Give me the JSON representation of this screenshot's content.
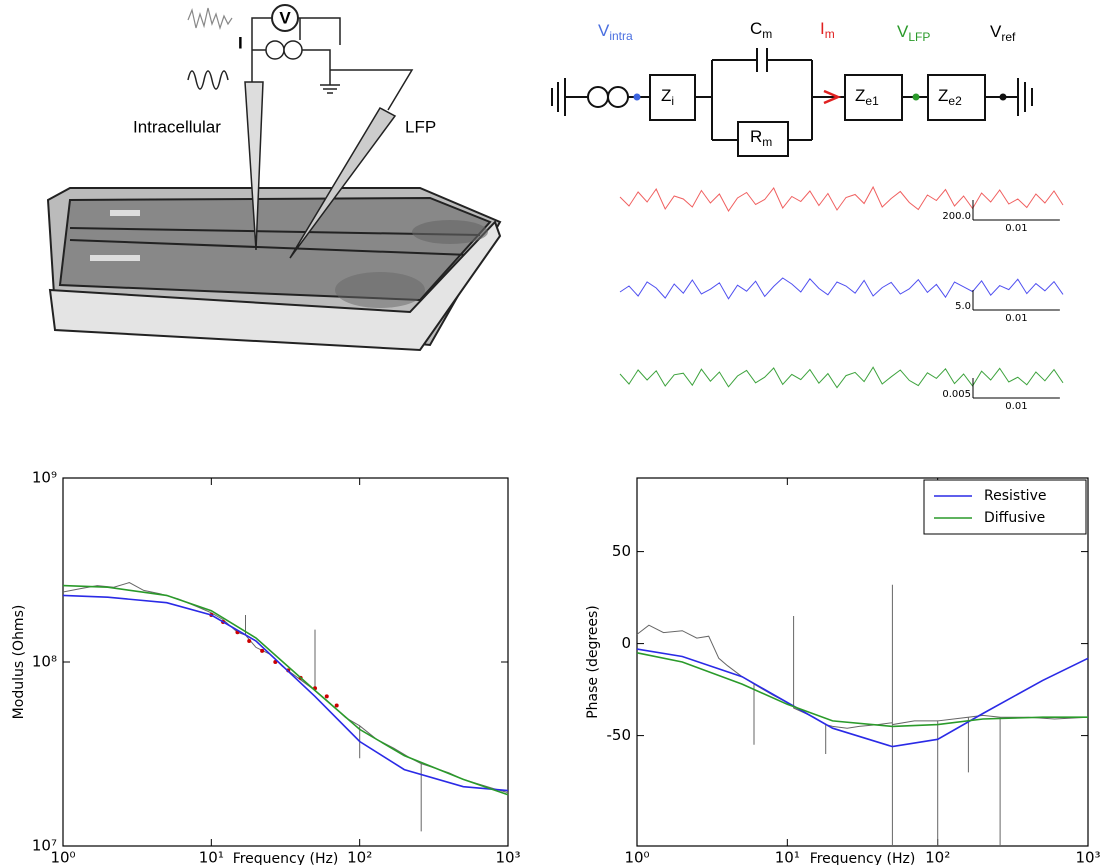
{
  "illustration": {
    "labels": [
      "Intracellular",
      "LFP"
    ],
    "meter": "V",
    "source": "I"
  },
  "circuit": {
    "labels": [
      {
        "text": "V",
        "sub": "intra"
      },
      {
        "text": "C",
        "sub": "m"
      },
      {
        "text": "I",
        "sub": "m"
      },
      {
        "text": "V",
        "sub": "LFP"
      },
      {
        "text": "V",
        "sub": "ref"
      }
    ],
    "boxes": [
      {
        "text": "Z",
        "sub": "i"
      },
      {
        "text": "R",
        "sub": "m"
      },
      {
        "text": "Z",
        "sub": "e1"
      },
      {
        "text": "Z",
        "sub": "e2"
      }
    ]
  },
  "chart_data": [
    {
      "type": "line",
      "xlim": [
        0,
        0.051
      ],
      "ylim": [
        -200,
        200
      ],
      "scale_bar": {
        "y": {
          "value": 200,
          "label": "200.0"
        },
        "x": 0.01
      },
      "series": [
        {
          "color": "#f06060",
          "values": [
            30,
            -60,
            80,
            -20,
            110,
            -90,
            40,
            10,
            -70,
            95,
            -30,
            60,
            -110,
            20,
            75,
            -45,
            5,
            120,
            -80,
            35,
            -15,
            90,
            -55,
            65,
            -100,
            25,
            55,
            -35,
            130,
            -70,
            15,
            85,
            -25,
            -95,
            50,
            -5,
            105,
            -60,
            40,
            -85,
            70,
            -20,
            100,
            -40,
            10,
            -75,
            60,
            -30,
            90,
            -50
          ]
        }
      ]
    },
    {
      "type": "line",
      "xlim": [
        0,
        0.051
      ],
      "ylim": [
        -5,
        5
      ],
      "scale_bar": {
        "y": {
          "value": 5,
          "label": "5.0"
        },
        "x": 0.01
      },
      "series": [
        {
          "color": "#5050f0",
          "values": [
            -0.5,
            1,
            -1.5,
            2,
            0.5,
            -2,
            1.5,
            -0.8,
            2.5,
            -1,
            0.2,
            1.8,
            -2.2,
            1.2,
            -0.3,
            2.2,
            -1.6,
            0.9,
            3,
            1.5,
            -0.5,
            2.8,
            0.4,
            -1.2,
            2,
            1,
            -0.8,
            2.4,
            -1.5,
            0.6,
            1.9,
            -1,
            0.3,
            2.6,
            -0.6,
            1.4,
            -1.8,
            2,
            0.8,
            -0.4,
            2.3,
            -1.3,
            1.1,
            0.1,
            2.7,
            -0.9,
            1.6,
            -0.2,
            2.1,
            -1.1
          ]
        }
      ]
    },
    {
      "type": "line",
      "xlim": [
        0,
        0.051
      ],
      "ylim": [
        -0.005,
        0.005
      ],
      "scale_bar": {
        "y": 0.005,
        "x": 0.01
      },
      "series": [
        {
          "color": "#3ea33e",
          "values": [
            0.001,
            -0.0015,
            0.002,
            -0.0005,
            0.0018,
            -0.002,
            0.0008,
            0.0012,
            -0.0018,
            0.0022,
            -0.0008,
            0.0015,
            -0.0022,
            0.0005,
            0.0019,
            -0.0012,
            0.0002,
            0.0025,
            -0.0016,
            0.0009,
            -0.0004,
            0.0021,
            -0.0013,
            0.0011,
            -0.0024,
            0.0006,
            0.0014,
            -0.0009,
            0.0027,
            -0.0015,
            0.0003,
            0.002,
            -0.0006,
            -0.0019,
            0.0013,
            -0.0001,
            0.0023,
            -0.0014,
            0.001,
            -0.002,
            0.0017,
            -0.0005,
            0.0024,
            -0.001,
            0.0002,
            -0.0017,
            0.0015,
            -0.0007,
            0.0021,
            -0.0012
          ]
        }
      ]
    },
    {
      "type": "line",
      "xscale": "log",
      "yscale": "log",
      "xlabel": "Frequency (Hz)",
      "ylabel": "Modulus (Ohms)",
      "xlim": [
        1,
        1000
      ],
      "ylim": [
        10000000,
        1000000000
      ],
      "xticks": [
        {
          "value": 1,
          "label": "10⁰"
        },
        {
          "value": 10,
          "label": "10¹"
        },
        {
          "value": 100,
          "label": "10²"
        },
        {
          "value": 1000,
          "label": "10³"
        }
      ],
      "yticks": [
        {
          "value": 10000000,
          "label": "10⁷"
        },
        {
          "value": 100000000,
          "label": "10⁸"
        },
        {
          "value": 1000000000,
          "label": "10⁹"
        }
      ],
      "series": [
        {
          "color": "#666666",
          "x": [
            1,
            1.3,
            1.7,
            2.2,
            2.8,
            3.5,
            4.5,
            6,
            8,
            10,
            12,
            15,
            17,
            17,
            17,
            20,
            25,
            30,
            40,
            50,
            50,
            50,
            60,
            80,
            100,
            100,
            100,
            130,
            170,
            220,
            260,
            260,
            260,
            300,
            400,
            500,
            600,
            800,
            1000
          ],
          "values": [
            240000000,
            250000000,
            260000000,
            255000000,
            270000000,
            245000000,
            235000000,
            220000000,
            200000000,
            185000000,
            170000000,
            145000000,
            140000000,
            180000000,
            140000000,
            120000000,
            110000000,
            95000000,
            80000000,
            70000000,
            150000000,
            70000000,
            62000000,
            50000000,
            45000000,
            30000000,
            45000000,
            38000000,
            34000000,
            30000000,
            28000000,
            12000000,
            28000000,
            27000000,
            25000000,
            23000000,
            22000000,
            20500000,
            19500000
          ]
        },
        {
          "color": "#cc0000",
          "style": "points",
          "x": [
            10,
            12,
            15,
            18,
            22,
            27,
            33,
            40,
            50,
            60,
            70
          ],
          "values": [
            180000000,
            165000000,
            145000000,
            130000000,
            115000000,
            100000000,
            90000000,
            82000000,
            72000000,
            65000000,
            58000000
          ]
        },
        {
          "name": "Resistive",
          "color": "#2a2ae6",
          "x": [
            1,
            2,
            5,
            10,
            20,
            50,
            100,
            200,
            500,
            1000
          ],
          "values": [
            230000000,
            225000000,
            210000000,
            180000000,
            130000000,
            65000000,
            37000000,
            26000000,
            21000000,
            20000000
          ]
        },
        {
          "name": "Diffusive",
          "color": "#2a9a2a",
          "x": [
            1,
            2,
            5,
            10,
            20,
            50,
            100,
            200,
            500,
            1000
          ],
          "values": [
            260000000,
            255000000,
            230000000,
            190000000,
            135000000,
            70000000,
            43000000,
            31000000,
            23000000,
            19000000
          ]
        }
      ]
    },
    {
      "type": "line",
      "xscale": "log",
      "xlabel": "Frequency (Hz)",
      "ylabel": "Phase (degrees)",
      "legend": "upper right",
      "xlim": [
        1,
        1000
      ],
      "ylim": [
        -110,
        90
      ],
      "xticks": [
        {
          "value": 1,
          "label": "10⁰"
        },
        {
          "value": 10,
          "label": "10¹"
        },
        {
          "value": 100,
          "label": "10²"
        },
        {
          "value": 1000,
          "label": "10³"
        }
      ],
      "yticks": [
        -50,
        0,
        50
      ],
      "series": [
        {
          "color": "#666666",
          "x": [
            1,
            1.2,
            1.5,
            2,
            2.5,
            3,
            3.5,
            4,
            5,
            6,
            6,
            6,
            8,
            10,
            11,
            11,
            11,
            15,
            18,
            18,
            18,
            20,
            25,
            30,
            40,
            50,
            50,
            50,
            50,
            70,
            100,
            100,
            100,
            160,
            160,
            160,
            200,
            260,
            260,
            260,
            400,
            600,
            1000
          ],
          "values": [
            5,
            10,
            6,
            7,
            3,
            4,
            -8,
            -12,
            -18,
            -22,
            -55,
            -22,
            -28,
            -32,
            -34,
            15,
            -35,
            -40,
            -44,
            -60,
            -44,
            -45,
            -46,
            -45,
            -44,
            -43,
            32,
            -110,
            -44,
            -42,
            -42,
            -110,
            -42,
            -40,
            -70,
            -40,
            -39,
            -40,
            -110,
            -40,
            -40,
            -41,
            -40
          ]
        },
        {
          "name": "Resistive",
          "color": "#2a2ae6",
          "x": [
            1,
            2,
            5,
            10,
            20,
            50,
            100,
            200,
            500,
            1000
          ],
          "values": [
            -3,
            -7,
            -18,
            -32,
            -46,
            -56,
            -52,
            -38,
            -20,
            -8
          ]
        },
        {
          "name": "Diffusive",
          "color": "#2a9a2a",
          "x": [
            1,
            2,
            5,
            10,
            20,
            50,
            100,
            200,
            500,
            1000
          ],
          "values": [
            -5,
            -10,
            -22,
            -33,
            -42,
            -45,
            -44,
            -41,
            -40,
            -40
          ]
        }
      ]
    }
  ]
}
